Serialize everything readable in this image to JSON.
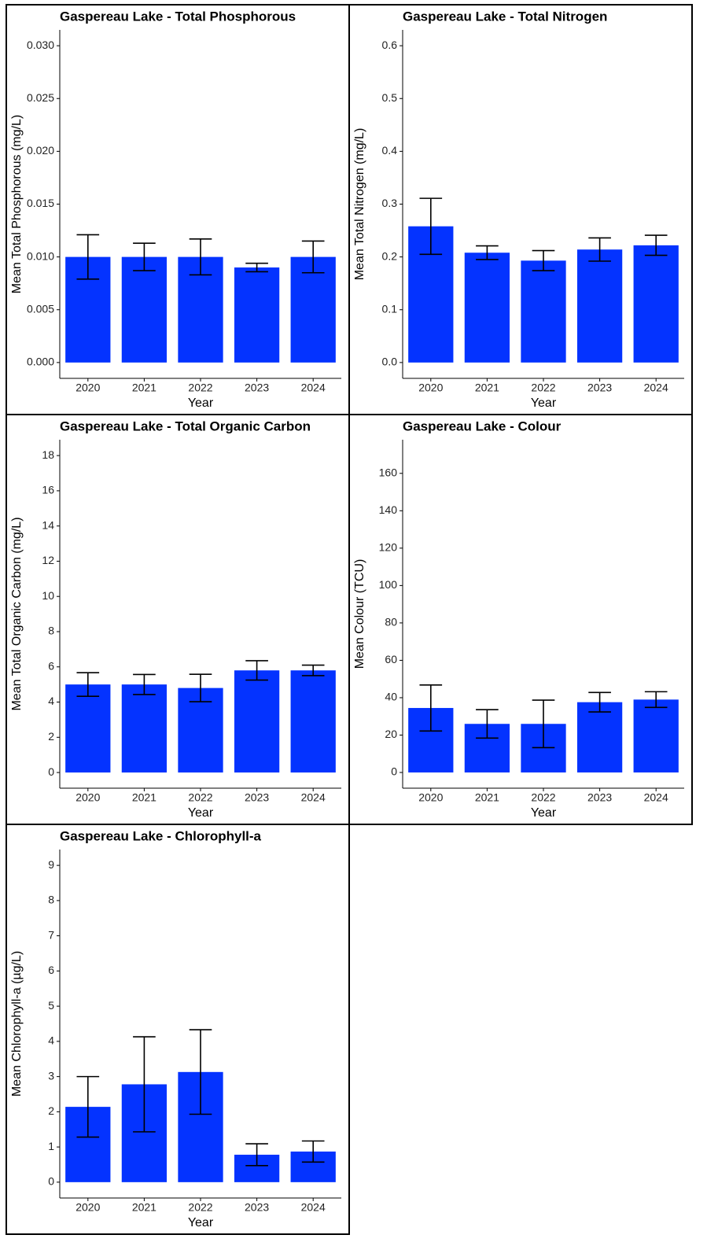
{
  "chart_data": [
    {
      "type": "bar",
      "title": "Gaspereau Lake - Total Phosphorous",
      "x_label": "Year",
      "y_label": "Mean Total Phosphorous (mg/L)",
      "color": "#0433ff",
      "categories": [
        "2020",
        "2021",
        "2022",
        "2023",
        "2024"
      ],
      "values": [
        0.01,
        0.01,
        0.01,
        0.009,
        0.01
      ],
      "errors": [
        0.0021,
        0.0013,
        0.0017,
        0.0004,
        0.0015
      ],
      "ylim": [
        -0.0015,
        0.0315
      ],
      "yticks": [
        {
          "value": 0,
          "label": "0.000"
        },
        0.005,
        {
          "value": 0.01,
          "label": "0.010"
        },
        0.015,
        {
          "value": 0.02,
          "label": "0.020"
        },
        0.025,
        {
          "value": 0.03,
          "label": "0.030"
        }
      ]
    },
    {
      "type": "bar",
      "title": "Gaspereau Lake - Total Nitrogen",
      "x_label": "Year",
      "y_label": "Mean Total Nitrogen (mg/L)",
      "color": "#0433ff",
      "categories": [
        "2020",
        "2021",
        "2022",
        "2023",
        "2024"
      ],
      "values": [
        0.258,
        0.208,
        0.193,
        0.214,
        0.222
      ],
      "errors": [
        0.053,
        0.013,
        0.019,
        0.022,
        0.019
      ],
      "ylim": [
        -0.03,
        0.63
      ],
      "yticks": [
        {
          "value": 0,
          "label": "0.0"
        },
        0.1,
        0.2,
        0.3,
        0.4,
        0.5,
        0.6
      ]
    },
    {
      "type": "bar",
      "title": "Gaspereau Lake - Total Organic Carbon",
      "x_label": "Year",
      "y_label": "Mean Total Organic Carbon (mg/L)",
      "color": "#0433ff",
      "categories": [
        "2020",
        "2021",
        "2022",
        "2023",
        "2024"
      ],
      "values": [
        5.0,
        5.0,
        4.8,
        5.8,
        5.8
      ],
      "errors": [
        0.67,
        0.57,
        0.78,
        0.55,
        0.3
      ],
      "ylim": [
        -0.89,
        18.9
      ],
      "yticks": [
        0,
        2,
        4,
        6,
        8,
        10,
        12,
        14,
        16,
        18
      ]
    },
    {
      "type": "bar",
      "title": "Gaspereau Lake - Colour",
      "x_label": "Year",
      "y_label": "Mean Colour (TCU)",
      "color": "#0433ff",
      "categories": [
        "2020",
        "2021",
        "2022",
        "2023",
        "2024"
      ],
      "values": [
        34.5,
        26,
        26,
        37.6,
        39
      ],
      "errors": [
        12.3,
        7.6,
        12.7,
        5.2,
        4.2
      ],
      "ylim": [
        -8.4,
        178
      ],
      "yticks": [
        0,
        20,
        40,
        60,
        80,
        100,
        120,
        140,
        160
      ]
    },
    {
      "type": "bar",
      "title": "Gaspereau Lake - Chlorophyll-a",
      "x_label": "Year",
      "y_label": "Mean Chlorophyll-a (µg/L)",
      "color": "#0433ff",
      "categories": [
        "2020",
        "2021",
        "2022",
        "2023",
        "2024"
      ],
      "values": [
        2.14,
        2.78,
        3.13,
        0.78,
        0.87
      ],
      "errors": [
        0.86,
        1.35,
        1.2,
        0.31,
        0.3
      ],
      "ylim": [
        -0.45,
        9.45
      ],
      "yticks": [
        0,
        1,
        2,
        3,
        4,
        5,
        6,
        7,
        8,
        9
      ]
    }
  ]
}
